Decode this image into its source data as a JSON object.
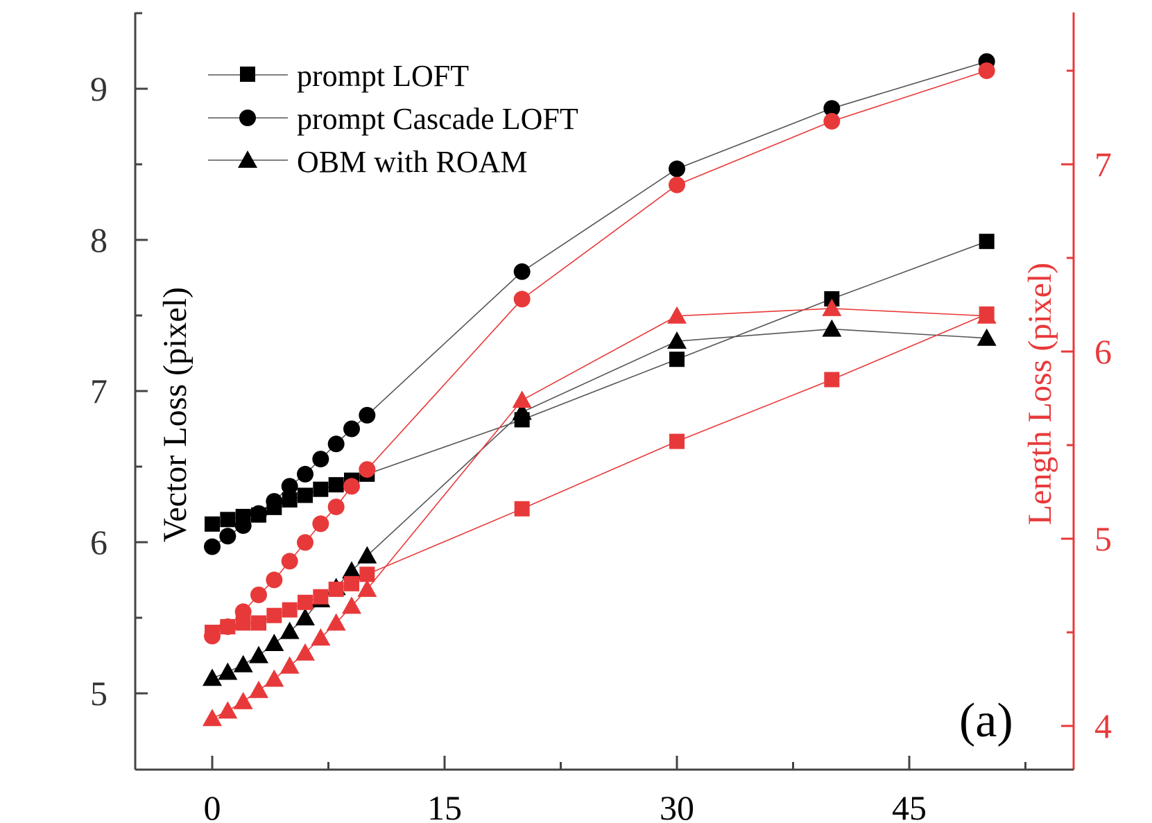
{
  "chart_data": {
    "type": "line",
    "panel_label": "(a)",
    "x_axis": {
      "range": [
        -5,
        55
      ],
      "major_ticks": [
        0,
        15,
        30,
        45
      ],
      "tick_labels": [
        "0",
        "15",
        "30",
        "45"
      ],
      "minor_ticks": [
        7.5,
        22.5,
        37.5,
        52.5
      ],
      "label": ""
    },
    "y_left": {
      "label": "Vector Loss (pixel)",
      "range": [
        4.5,
        9.5
      ],
      "major_ticks": [
        5,
        6,
        7,
        8,
        9
      ],
      "tick_labels": [
        "5",
        "6",
        "7",
        "8",
        "9"
      ],
      "minor_ticks": [
        5.5,
        6.5,
        7.5,
        8.5,
        9.5
      ],
      "color": "#000000"
    },
    "y_right": {
      "label": "Length Loss (pixel)",
      "range": [
        3.8,
        7.7
      ],
      "major_ticks": [
        4,
        5,
        6,
        7
      ],
      "tick_labels": [
        "4",
        "5",
        "6",
        "7"
      ],
      "minor_ticks": [
        4.5,
        5.5,
        6.5,
        7.5
      ],
      "color": "#e8393a"
    },
    "x": [
      0,
      1,
      2,
      3,
      4,
      5,
      6,
      7,
      8,
      9,
      10,
      20,
      30,
      40,
      50
    ],
    "legend": [
      {
        "name": "prompt LOFT",
        "marker": "square"
      },
      {
        "name": "prompt Cascade LOFT",
        "marker": "circle"
      },
      {
        "name": "OBM with ROAM",
        "marker": "triangle"
      }
    ],
    "series": [
      {
        "name": "prompt LOFT",
        "axis": "left",
        "color": "#000000",
        "marker": "square",
        "values": [
          6.12,
          6.15,
          6.17,
          6.18,
          6.23,
          6.28,
          6.31,
          6.35,
          6.38,
          6.41,
          6.45,
          6.81,
          7.21,
          7.61,
          7.99
        ]
      },
      {
        "name": "prompt Cascade LOFT",
        "axis": "left",
        "color": "#000000",
        "marker": "circle",
        "values": [
          5.97,
          6.04,
          6.11,
          6.19,
          6.27,
          6.37,
          6.45,
          6.55,
          6.65,
          6.75,
          6.84,
          7.79,
          8.47,
          8.87,
          9.18
        ]
      },
      {
        "name": "OBM with ROAM",
        "axis": "left",
        "color": "#000000",
        "marker": "triangle",
        "values": [
          5.1,
          5.14,
          5.19,
          5.25,
          5.33,
          5.41,
          5.5,
          5.62,
          5.7,
          5.81,
          5.91,
          6.86,
          7.33,
          7.41,
          7.35
        ]
      },
      {
        "name": "prompt LOFT (Length Loss)",
        "axis": "right",
        "color": "#e8393a",
        "marker": "square",
        "values": [
          4.5,
          4.53,
          4.55,
          4.55,
          4.59,
          4.62,
          4.66,
          4.69,
          4.73,
          4.76,
          4.81,
          5.16,
          5.52,
          5.85,
          6.2
        ]
      },
      {
        "name": "prompt Cascade LOFT (Length Loss)",
        "axis": "right",
        "color": "#e8393a",
        "marker": "circle",
        "values": [
          4.48,
          4.53,
          4.61,
          4.7,
          4.78,
          4.88,
          4.98,
          5.08,
          5.17,
          5.28,
          5.37,
          6.28,
          6.89,
          7.23,
          7.5
        ]
      },
      {
        "name": "OBM with ROAM (Length Loss)",
        "axis": "right",
        "color": "#e8393a",
        "marker": "triangle",
        "values": [
          4.04,
          4.08,
          4.13,
          4.19,
          4.25,
          4.32,
          4.39,
          4.47,
          4.55,
          4.64,
          4.73,
          5.74,
          6.19,
          6.23,
          6.19
        ]
      }
    ]
  }
}
